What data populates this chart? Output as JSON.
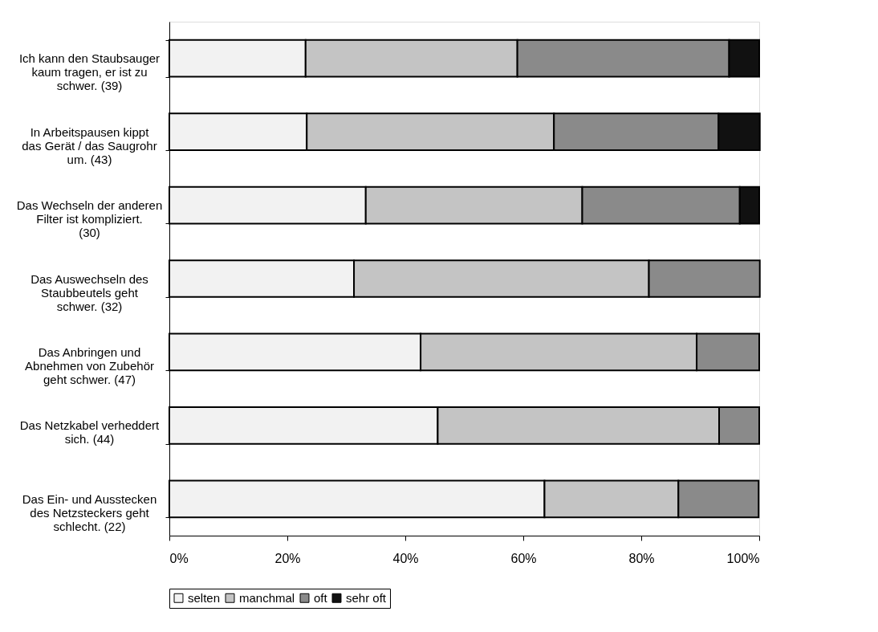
{
  "chart_data": {
    "type": "bar",
    "orientation": "horizontal",
    "stacked": true,
    "categories": [
      "Ich kann den Staubsauger kaum tragen, er ist zu schwer. (39)",
      "In Arbeitspausen kippt das Gerät / das Saugrohr um. (43)",
      "Das Wechseln der anderen Filter ist kompliziert. (30)",
      "Das Auswechseln des Staubbeutels geht schwer. (32)",
      "Das Anbringen und Abnehmen von Zubehör geht schwer. (47)",
      "Das Netzkabel verheddert sich. (44)",
      "Das Ein- und Ausstecken des Netzsteckers geht schlecht. (22)"
    ],
    "series": [
      {
        "name": "selten",
        "color": "#f2f2f2",
        "values": [
          23.1,
          23.3,
          33.3,
          31.3,
          42.6,
          45.5,
          63.6
        ]
      },
      {
        "name": "manchmal",
        "color": "#c4c4c4",
        "values": [
          35.9,
          41.9,
          36.7,
          50.0,
          46.8,
          47.7,
          22.7
        ]
      },
      {
        "name": "oft",
        "color": "#8a8a8a",
        "values": [
          35.9,
          27.9,
          26.7,
          18.8,
          10.6,
          6.8,
          13.6
        ]
      },
      {
        "name": "sehr oft",
        "color": "#111111",
        "values": [
          5.1,
          7.0,
          3.3,
          null,
          null,
          null,
          null
        ]
      }
    ],
    "xlim": [
      0,
      100
    ],
    "xticks": [
      {
        "value": 0,
        "label": "0%"
      },
      {
        "value": 20,
        "label": "20%"
      },
      {
        "value": 40,
        "label": "40%"
      },
      {
        "value": 60,
        "label": "60%"
      },
      {
        "value": 80,
        "label": "80%"
      },
      {
        "value": 100,
        "label": "100%"
      }
    ],
    "legend": "bottom",
    "grid": false
  }
}
